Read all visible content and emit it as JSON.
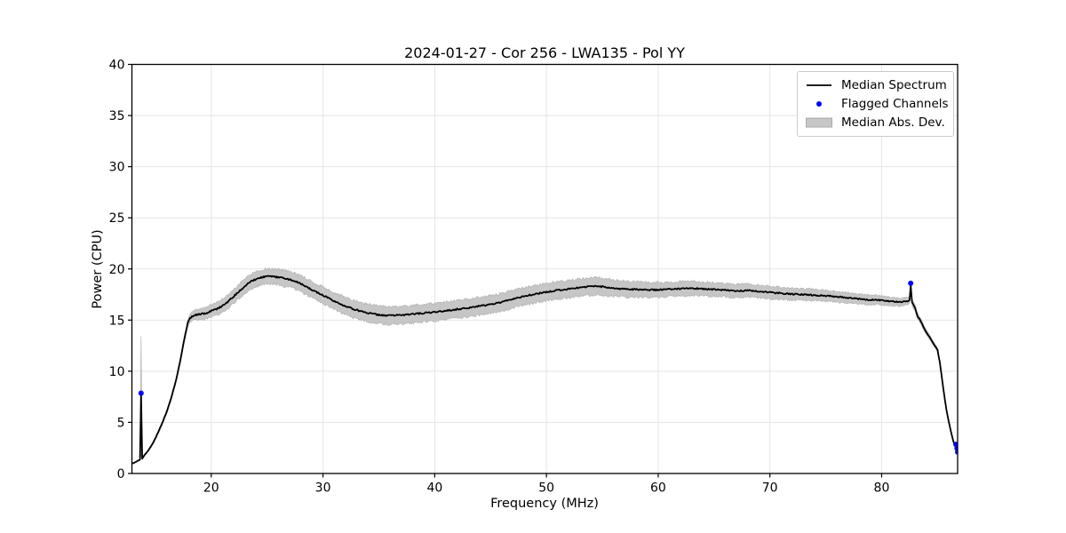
{
  "figure": {
    "background": "#ffffff"
  },
  "chart_data": {
    "type": "line",
    "title": "2024-01-27 - Cor 256 - LWA135 - Pol YY",
    "xlabel": "Frequency (MHz)",
    "ylabel": "Power (CPU)",
    "xlim": [
      12.9,
      86.8
    ],
    "ylim": [
      0,
      40
    ],
    "xticks": [
      20,
      30,
      40,
      50,
      60,
      70,
      80
    ],
    "yticks": [
      0,
      5,
      10,
      15,
      20,
      25,
      30,
      35,
      40
    ],
    "grid": true,
    "legend_position": "upper right",
    "noise_amplitude": 0.07,
    "colors": {
      "median_line": "#000000",
      "flagged": "#0000ff",
      "mad_band": "#c6c6c6",
      "mad_band_edge": "#b4b4b4",
      "grid": "#e5e5e5",
      "frame": "#000000",
      "legend_border": "#cccccc"
    },
    "legend": {
      "items": [
        {
          "label": "Median Spectrum",
          "swatch": "line"
        },
        {
          "label": "Flagged Channels",
          "swatch": "dot"
        },
        {
          "label": "Median Abs. Dev.",
          "swatch": "patch"
        }
      ]
    },
    "median_spectrum": {
      "name": "Median Spectrum",
      "points_format": [
        "frequency_mhz",
        "power_cpu",
        "mad_halfwidth"
      ],
      "points": [
        [
          12.9,
          0.95,
          0.05
        ],
        [
          13.2,
          1.1,
          0.05
        ],
        [
          13.45,
          1.25,
          0.05
        ],
        [
          13.62,
          1.35,
          0.06
        ],
        [
          13.72,
          7.7,
          5.8
        ],
        [
          13.82,
          1.45,
          0.06
        ],
        [
          14.0,
          1.75,
          0.08
        ],
        [
          14.4,
          2.3,
          0.1
        ],
        [
          14.8,
          3.0,
          0.12
        ],
        [
          15.2,
          3.9,
          0.14
        ],
        [
          15.6,
          4.9,
          0.16
        ],
        [
          16.0,
          6.0,
          0.18
        ],
        [
          16.4,
          7.3,
          0.2
        ],
        [
          16.8,
          8.9,
          0.22
        ],
        [
          17.2,
          10.9,
          0.25
        ],
        [
          17.6,
          13.2,
          0.3
        ],
        [
          17.9,
          14.7,
          0.35
        ],
        [
          18.1,
          15.2,
          0.4
        ],
        [
          18.35,
          15.4,
          0.45
        ],
        [
          18.6,
          15.5,
          0.5
        ],
        [
          18.9,
          15.55,
          0.52
        ],
        [
          19.2,
          15.6,
          0.55
        ],
        [
          19.5,
          15.65,
          0.55
        ],
        [
          19.8,
          15.8,
          0.58
        ],
        [
          20.1,
          15.95,
          0.6
        ],
        [
          20.4,
          16.05,
          0.62
        ],
        [
          20.7,
          16.2,
          0.63
        ],
        [
          21.0,
          16.4,
          0.65
        ],
        [
          21.3,
          16.6,
          0.67
        ],
        [
          21.6,
          16.9,
          0.68
        ],
        [
          21.9,
          17.2,
          0.68
        ],
        [
          22.2,
          17.5,
          0.7
        ],
        [
          22.5,
          17.8,
          0.7
        ],
        [
          22.8,
          18.1,
          0.72
        ],
        [
          23.1,
          18.4,
          0.72
        ],
        [
          23.4,
          18.65,
          0.73
        ],
        [
          23.7,
          18.85,
          0.73
        ],
        [
          24.0,
          19.0,
          0.74
        ],
        [
          24.3,
          19.1,
          0.74
        ],
        [
          24.6,
          19.2,
          0.75
        ],
        [
          24.9,
          19.25,
          0.75
        ],
        [
          25.2,
          19.3,
          0.75
        ],
        [
          25.5,
          19.28,
          0.75
        ],
        [
          25.8,
          19.22,
          0.76
        ],
        [
          26.1,
          19.18,
          0.76
        ],
        [
          26.4,
          19.12,
          0.78
        ],
        [
          26.7,
          19.05,
          0.78
        ],
        [
          27.0,
          18.98,
          0.78
        ],
        [
          27.3,
          18.9,
          0.78
        ],
        [
          27.6,
          18.78,
          0.8
        ],
        [
          27.9,
          18.62,
          0.8
        ],
        [
          28.2,
          18.45,
          0.8
        ],
        [
          28.5,
          18.28,
          0.8
        ],
        [
          28.8,
          18.1,
          0.8
        ],
        [
          29.1,
          17.92,
          0.8
        ],
        [
          29.4,
          17.75,
          0.8
        ],
        [
          29.7,
          17.6,
          0.8
        ],
        [
          30.0,
          17.42,
          0.8
        ],
        [
          30.4,
          17.2,
          0.82
        ],
        [
          30.8,
          16.98,
          0.82
        ],
        [
          31.2,
          16.78,
          0.83
        ],
        [
          31.6,
          16.58,
          0.84
        ],
        [
          32.0,
          16.38,
          0.85
        ],
        [
          32.4,
          16.2,
          0.85
        ],
        [
          32.8,
          16.05,
          0.85
        ],
        [
          33.2,
          15.92,
          0.85
        ],
        [
          33.6,
          15.8,
          0.85
        ],
        [
          34.0,
          15.7,
          0.86
        ],
        [
          34.4,
          15.62,
          0.86
        ],
        [
          34.8,
          15.55,
          0.86
        ],
        [
          35.2,
          15.5,
          0.86
        ],
        [
          35.6,
          15.46,
          0.86
        ],
        [
          36.0,
          15.44,
          0.86
        ],
        [
          36.4,
          15.45,
          0.86
        ],
        [
          36.8,
          15.48,
          0.86
        ],
        [
          37.2,
          15.5,
          0.86
        ],
        [
          37.6,
          15.54,
          0.86
        ],
        [
          38.0,
          15.58,
          0.86
        ],
        [
          38.5,
          15.63,
          0.86
        ],
        [
          39.0,
          15.68,
          0.86
        ],
        [
          39.5,
          15.73,
          0.86
        ],
        [
          40.0,
          15.78,
          0.86
        ],
        [
          40.5,
          15.84,
          0.86
        ],
        [
          41.0,
          15.92,
          0.86
        ],
        [
          41.5,
          15.98,
          0.86
        ],
        [
          42.0,
          16.06,
          0.86
        ],
        [
          42.5,
          16.12,
          0.86
        ],
        [
          43.0,
          16.2,
          0.86
        ],
        [
          43.5,
          16.28,
          0.86
        ],
        [
          44.0,
          16.36,
          0.86
        ],
        [
          44.5,
          16.44,
          0.86
        ],
        [
          45.0,
          16.54,
          0.86
        ],
        [
          45.5,
          16.64,
          0.86
        ],
        [
          46.0,
          16.76,
          0.86
        ],
        [
          46.5,
          16.9,
          0.86
        ],
        [
          47.0,
          17.04,
          0.86
        ],
        [
          47.5,
          17.18,
          0.86
        ],
        [
          48.0,
          17.32,
          0.86
        ],
        [
          48.5,
          17.44,
          0.86
        ],
        [
          49.0,
          17.54,
          0.86
        ],
        [
          49.5,
          17.64,
          0.86
        ],
        [
          50.0,
          17.74,
          0.86
        ],
        [
          50.5,
          17.82,
          0.86
        ],
        [
          51.0,
          17.9,
          0.86
        ],
        [
          51.5,
          17.98,
          0.86
        ],
        [
          52.0,
          18.05,
          0.86
        ],
        [
          52.5,
          18.1,
          0.86
        ],
        [
          53.0,
          18.17,
          0.86
        ],
        [
          53.5,
          18.23,
          0.86
        ],
        [
          54.0,
          18.28,
          0.85
        ],
        [
          54.5,
          18.3,
          0.85
        ],
        [
          55.0,
          18.26,
          0.84
        ],
        [
          55.5,
          18.18,
          0.82
        ],
        [
          56.0,
          18.12,
          0.8
        ],
        [
          56.5,
          18.07,
          0.79
        ],
        [
          57.0,
          18.04,
          0.78
        ],
        [
          57.5,
          18.01,
          0.77
        ],
        [
          58.0,
          18.0,
          0.76
        ],
        [
          58.5,
          17.98,
          0.74
        ],
        [
          59.0,
          17.96,
          0.73
        ],
        [
          59.5,
          17.95,
          0.72
        ],
        [
          60.0,
          17.96,
          0.72
        ],
        [
          60.5,
          17.98,
          0.71
        ],
        [
          61.0,
          18.0,
          0.71
        ],
        [
          61.5,
          18.02,
          0.7
        ],
        [
          62.0,
          18.05,
          0.7
        ],
        [
          62.5,
          18.08,
          0.7
        ],
        [
          63.0,
          18.1,
          0.7
        ],
        [
          63.5,
          18.08,
          0.69
        ],
        [
          64.0,
          18.05,
          0.68
        ],
        [
          64.5,
          18.02,
          0.68
        ],
        [
          65.0,
          17.99,
          0.67
        ],
        [
          65.5,
          17.96,
          0.66
        ],
        [
          66.0,
          17.93,
          0.66
        ],
        [
          66.5,
          17.88,
          0.65
        ],
        [
          67.0,
          17.85,
          0.65
        ],
        [
          67.5,
          17.87,
          0.64
        ],
        [
          68.0,
          17.89,
          0.64
        ],
        [
          68.5,
          17.84,
          0.63
        ],
        [
          69.0,
          17.79,
          0.62
        ],
        [
          69.5,
          17.74,
          0.62
        ],
        [
          70.0,
          17.7,
          0.61
        ],
        [
          70.5,
          17.66,
          0.6
        ],
        [
          71.0,
          17.62,
          0.6
        ],
        [
          71.5,
          17.58,
          0.59
        ],
        [
          72.0,
          17.54,
          0.59
        ],
        [
          72.5,
          17.51,
          0.58
        ],
        [
          73.0,
          17.49,
          0.57
        ],
        [
          73.5,
          17.46,
          0.57
        ],
        [
          74.0,
          17.44,
          0.56
        ],
        [
          74.5,
          17.41,
          0.55
        ],
        [
          75.0,
          17.38,
          0.54
        ],
        [
          75.5,
          17.33,
          0.53
        ],
        [
          76.0,
          17.28,
          0.52
        ],
        [
          76.5,
          17.23,
          0.51
        ],
        [
          77.0,
          17.18,
          0.5
        ],
        [
          77.5,
          17.12,
          0.49
        ],
        [
          78.0,
          17.07,
          0.48
        ],
        [
          78.5,
          17.01,
          0.47
        ],
        [
          79.0,
          16.96,
          0.46
        ],
        [
          79.5,
          17.0,
          0.45
        ],
        [
          80.0,
          16.92,
          0.44
        ],
        [
          80.5,
          16.86,
          0.43
        ],
        [
          81.0,
          16.8,
          0.42
        ],
        [
          81.5,
          16.76,
          0.4
        ],
        [
          82.0,
          16.8,
          0.38
        ],
        [
          82.3,
          16.86,
          0.36
        ],
        [
          82.5,
          16.95,
          0.34
        ],
        [
          82.6,
          18.45,
          0.3
        ],
        [
          82.72,
          16.75,
          0.33
        ],
        [
          83.0,
          16.2,
          0.3
        ],
        [
          83.2,
          15.4,
          0.28
        ],
        [
          83.5,
          14.9,
          0.26
        ],
        [
          83.9,
          14.0,
          0.24
        ],
        [
          84.3,
          13.3,
          0.22
        ],
        [
          84.7,
          12.6,
          0.2
        ],
        [
          85.0,
          12.1,
          0.18
        ],
        [
          85.2,
          10.9,
          0.15
        ],
        [
          85.4,
          9.3,
          0.13
        ],
        [
          85.6,
          7.7,
          0.12
        ],
        [
          85.8,
          6.2,
          0.1
        ],
        [
          86.0,
          5.1,
          0.09
        ],
        [
          86.2,
          4.1,
          0.08
        ],
        [
          86.4,
          3.2,
          0.07
        ],
        [
          86.6,
          2.6,
          0.06
        ],
        [
          86.8,
          2.15,
          0.05
        ]
      ]
    },
    "flagged_channels": {
      "name": "Flagged Channels",
      "points_format": [
        "frequency_mhz",
        "power_cpu"
      ],
      "points": [
        [
          13.72,
          7.85
        ],
        [
          82.6,
          18.6
        ],
        [
          86.65,
          2.85
        ],
        [
          86.75,
          2.45
        ],
        [
          86.8,
          2.1
        ]
      ]
    }
  }
}
